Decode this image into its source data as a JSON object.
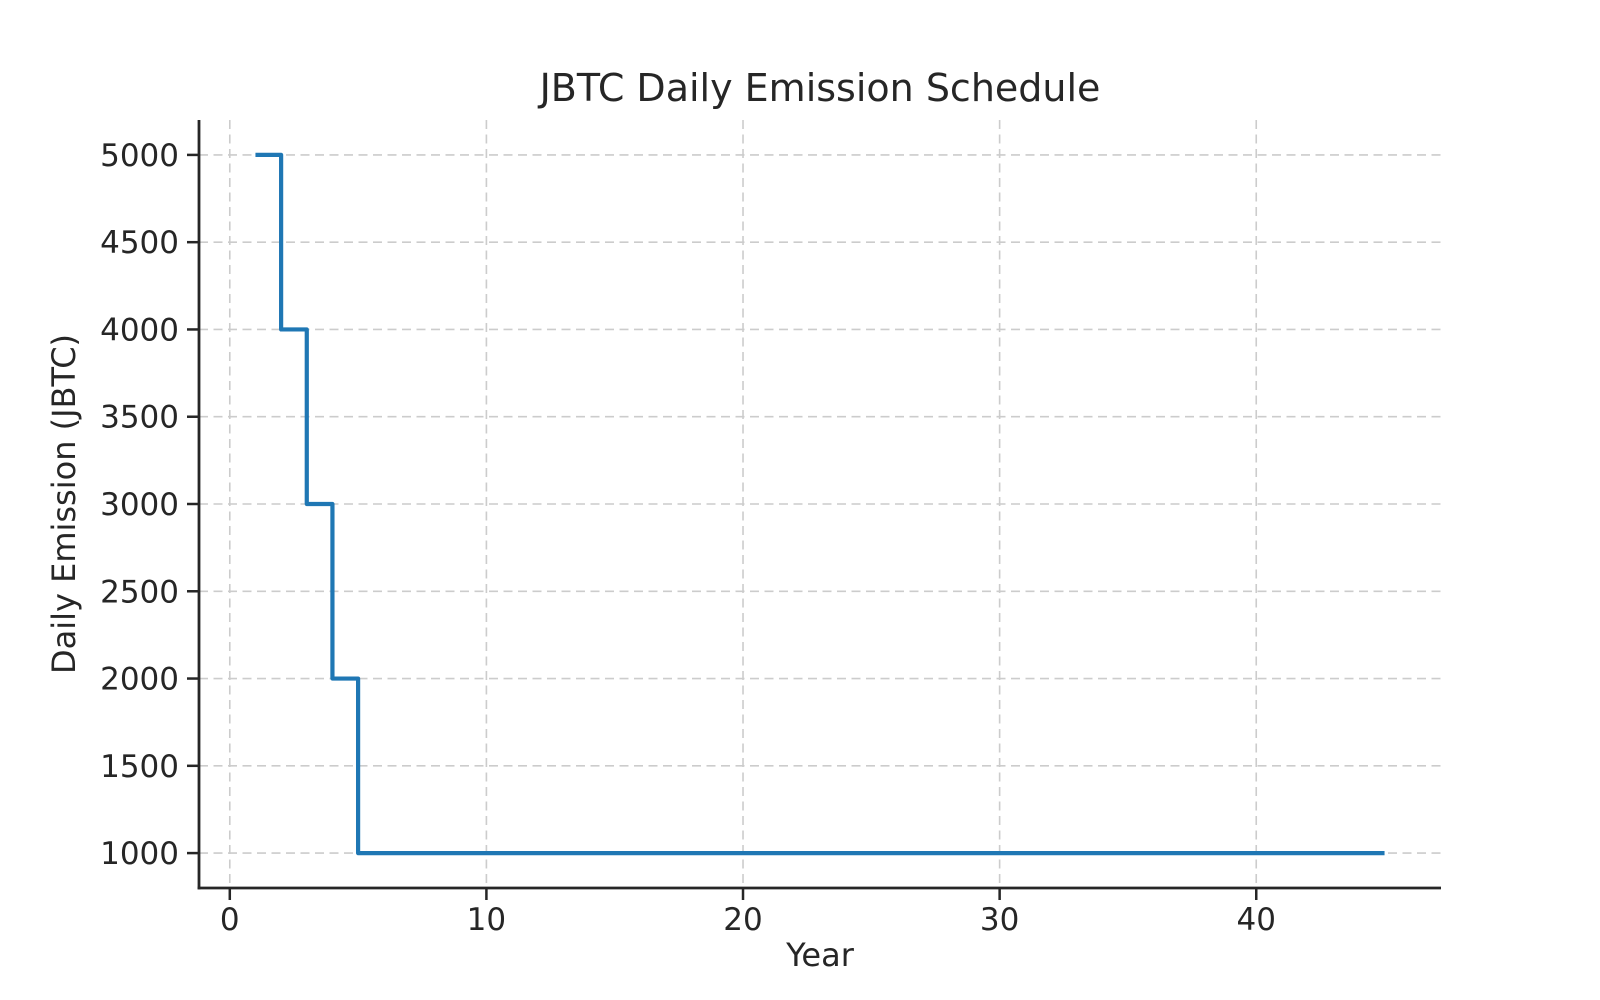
{
  "chart_data": {
    "type": "line",
    "step": "post",
    "title": "JBTC Daily Emission Schedule",
    "xlabel": "Year",
    "ylabel": "Daily Emission (JBTC)",
    "x": [
      1,
      2,
      3,
      4,
      5,
      45
    ],
    "y": [
      5000,
      4000,
      3000,
      2000,
      1000,
      1000
    ],
    "xlim": [
      -1.2,
      47.2
    ],
    "ylim": [
      800,
      5200
    ],
    "xticks": [
      0,
      10,
      20,
      30,
      40
    ],
    "yticks": [
      1000,
      1500,
      2000,
      2500,
      3000,
      3500,
      4000,
      4500,
      5000
    ],
    "grid": true,
    "grid_style": "dashed",
    "legend": "none",
    "colors": {
      "line": "#1f77b4",
      "grid": "#cccccc",
      "spine": "#262626",
      "text": "#262626",
      "background": "#ffffff"
    },
    "line_width": 4.2
  }
}
